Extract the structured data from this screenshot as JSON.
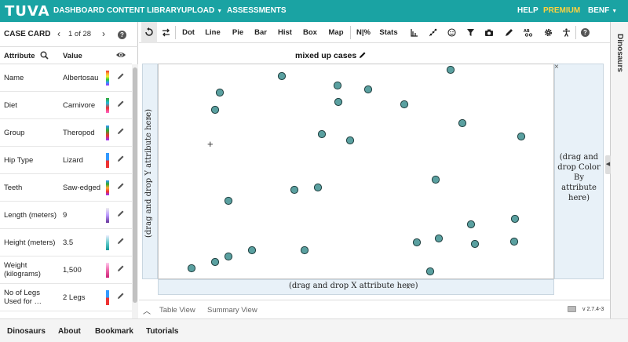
{
  "nav": {
    "logo": "TUVA",
    "items": [
      "DASHBOARD",
      "CONTENT LIBRARY",
      "UPLOAD",
      "ASSESSMENTS"
    ],
    "help": "HELP",
    "premium": "PREMIUM",
    "user": "BENF",
    "colors": {
      "bar": "#1aa3a3",
      "premium": "#ffd23f"
    }
  },
  "case_card": {
    "title": "CASE CARD",
    "counter": "1 of 28",
    "header_attribute": "Attribute",
    "header_value": "Value",
    "rows": [
      {
        "name": "Name",
        "value": "Albertosau"
      },
      {
        "name": "Diet",
        "value": "Carnivore"
      },
      {
        "name": "Group",
        "value": "Theropod"
      },
      {
        "name": "Hip Type",
        "value": "Lizard"
      },
      {
        "name": "Teeth",
        "value": "Saw-edged"
      },
      {
        "name": "Length (meters)",
        "value": "9"
      },
      {
        "name": "Height (meters)",
        "value": "3.5"
      },
      {
        "name": "Weight (kilograms)",
        "value": "1,500"
      },
      {
        "name": "No of Legs Used for …",
        "value": "2 Legs"
      }
    ]
  },
  "toolbar": {
    "dot": "Dot",
    "line": "Line",
    "pie": "Pie",
    "bar": "Bar",
    "hist": "Hist",
    "box": "Box",
    "map": "Map",
    "np": "N|%",
    "stats": "Stats"
  },
  "graph": {
    "title": "mixed up cases",
    "y_drop": "(drag and drop Y attribute here)",
    "x_drop": "(drag and drop X attribute here)",
    "color_drop": "(drag and drop Color By attribute here)",
    "point_color": "#5aa0a0"
  },
  "chart_data": {
    "type": "scatter",
    "title": "mixed up cases",
    "xlabel": "",
    "ylabel": "",
    "note_axes": "no attributes assigned; points randomly placed",
    "points_count": 28
  },
  "right_panel": {
    "label": "Dinosaurs"
  },
  "viewbar": {
    "table_view": "Table View",
    "summary_view": "Summary View",
    "version": "v 2.7.4-3"
  },
  "footer": {
    "items": [
      "Dinosaurs",
      "About",
      "Bookmark",
      "Tutorials"
    ]
  }
}
